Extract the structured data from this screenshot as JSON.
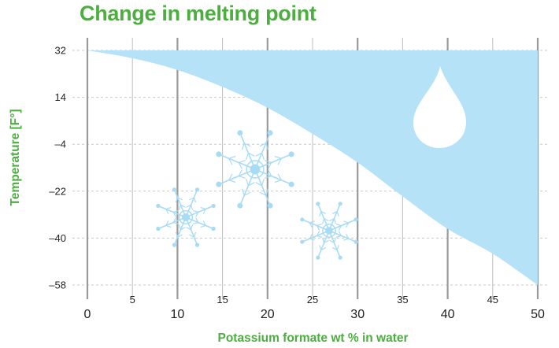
{
  "colors": {
    "title": "#4cae3f",
    "area_fill": "#b5e2f7",
    "snowflake": "#a8dbf4",
    "gridline_major": "#9a9a9a",
    "gridline_minor": "#bdbdbd",
    "gridline_horizontal": "#c8c8c8"
  },
  "icons": [
    "water-drop-icon",
    "snowflake-icon",
    "snowflake-icon",
    "snowflake-icon"
  ],
  "chart_data": {
    "type": "area",
    "title": "Change in melting point",
    "xlabel": "Potassium formate wt % in water",
    "ylabel": "Temperature [F°]",
    "xlim": [
      0,
      50
    ],
    "ylim": [
      -58,
      32
    ],
    "x_ticks": [
      0,
      5,
      10,
      15,
      20,
      25,
      30,
      35,
      40,
      45,
      50
    ],
    "y_ticks": [
      32,
      14,
      -4,
      -22,
      -40,
      -58
    ],
    "grid": true,
    "legend": "none",
    "series": [
      {
        "x": [
          0,
          5,
          10,
          15,
          20,
          25,
          30,
          35,
          40,
          45,
          50
        ],
        "y": [
          32,
          29,
          24.5,
          18,
          10,
          0,
          -11,
          -24,
          -36.5,
          -46,
          -58
        ]
      }
    ],
    "fill": "between curve and 32"
  }
}
